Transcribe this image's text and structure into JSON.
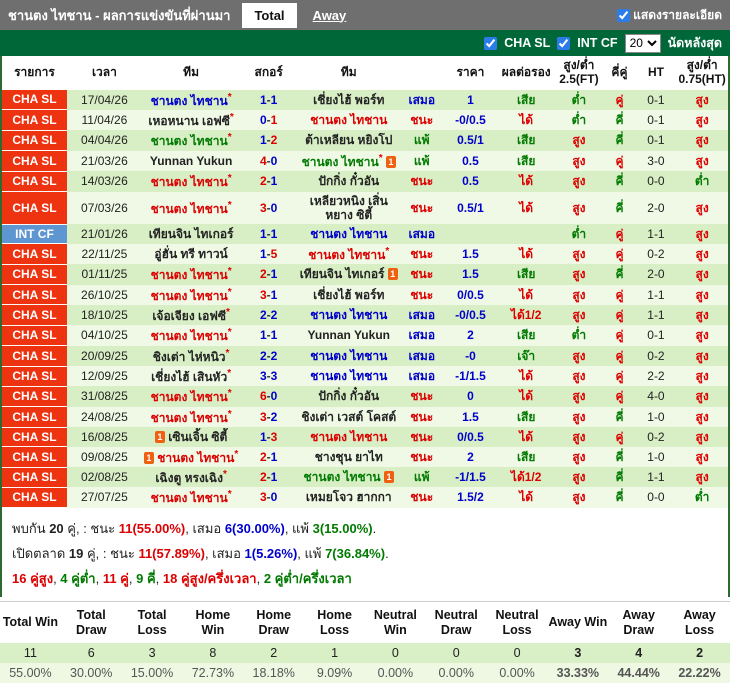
{
  "colors": {
    "red": "#dd0000",
    "blue": "#0000cc",
    "green": "#007a00",
    "black": "#222222"
  },
  "header": {
    "title": "ชานตง ไทชาน - ผลการแข่งขันที่ผ่านมา",
    "tab_total": "Total",
    "tab_away": "Away",
    "show_details": "แสดงรายละเอียด"
  },
  "filter": {
    "cha": "CHA SL",
    "int": "INT CF",
    "count": "20",
    "count_label": "นัดหลังสุด"
  },
  "table": {
    "headers": [
      "รายการ",
      "เวลา",
      "ทีม",
      "สกอร์",
      "ทีม",
      "",
      "ราคา",
      "ผลต่อรอง",
      "สูง/ต่ำ 2.5(FT)",
      "คี่คู่",
      "HT",
      "สูง/ต่ำ 0.75(HT)"
    ],
    "rows": [
      {
        "lg": "cha",
        "league": "CHA SL",
        "date": "17/04/26",
        "t1": "ชานตง ไทชาน",
        "s1": true,
        "i1": null,
        "c1": "blue",
        "g1": "1",
        "gc1": "blue",
        "g2": "1",
        "gc2": "blue",
        "t2": "เชี่ยงไฮ้ พอร์ท",
        "s2": false,
        "i2": null,
        "c2": "black",
        "res": "เสมอ",
        "resc": "blue",
        "price": "1",
        "hc": "เสีย",
        "hcc": "green",
        "ou": "ต่ำ",
        "ouc": "green",
        "oe": "คู่",
        "oec": "red",
        "ht": "0-1",
        "ouht": "สูง",
        "ouhtc": "red"
      },
      {
        "lg": "cha",
        "league": "CHA SL",
        "date": "11/04/26",
        "t1": "เหอหนาน เอฟซี",
        "s1": true,
        "i1": null,
        "c1": "black",
        "g1": "0",
        "gc1": "blue",
        "g2": "1",
        "gc2": "red",
        "t2": "ชานตง ไทชาน",
        "s2": false,
        "i2": null,
        "c2": "red",
        "res": "ชนะ",
        "resc": "red",
        "price": "-0/0.5",
        "hc": "ได้",
        "hcc": "red",
        "ou": "ต่ำ",
        "ouc": "green",
        "oe": "คี่",
        "oec": "green",
        "ht": "0-1",
        "ouht": "สูง",
        "ouhtc": "red"
      },
      {
        "lg": "cha",
        "league": "CHA SL",
        "date": "04/04/26",
        "t1": "ชานตง ไทชาน",
        "s1": true,
        "i1": null,
        "c1": "green",
        "g1": "1",
        "gc1": "blue",
        "g2": "2",
        "gc2": "red",
        "t2": "ต้าเหลียน หยิงโป",
        "s2": false,
        "i2": null,
        "c2": "black",
        "res": "แพ้",
        "resc": "green",
        "price": "0.5/1",
        "hc": "เสีย",
        "hcc": "green",
        "ou": "สูง",
        "ouc": "red",
        "oe": "คี่",
        "oec": "green",
        "ht": "0-1",
        "ouht": "สูง",
        "ouhtc": "red"
      },
      {
        "lg": "cha",
        "league": "CHA SL",
        "date": "21/03/26",
        "t1": "Yunnan Yukun",
        "s1": false,
        "i1": null,
        "c1": "black",
        "g1": "4",
        "gc1": "red",
        "g2": "0",
        "gc2": "blue",
        "t2": "ชานตง ไทชาน",
        "s2": true,
        "i2": "after",
        "c2": "green",
        "res": "แพ้",
        "resc": "green",
        "price": "0.5",
        "hc": "เสีย",
        "hcc": "green",
        "ou": "สูง",
        "ouc": "red",
        "oe": "คู่",
        "oec": "red",
        "ht": "3-0",
        "ouht": "สูง",
        "ouhtc": "red"
      },
      {
        "lg": "cha",
        "league": "CHA SL",
        "date": "14/03/26",
        "t1": "ชานตง ไทชาน",
        "s1": true,
        "i1": null,
        "c1": "red",
        "g1": "2",
        "gc1": "red",
        "g2": "1",
        "gc2": "blue",
        "t2": "ปักกิ่ง กั๋วอัน",
        "s2": false,
        "i2": null,
        "c2": "black",
        "res": "ชนะ",
        "resc": "red",
        "price": "0.5",
        "hc": "ได้",
        "hcc": "red",
        "ou": "สูง",
        "ouc": "red",
        "oe": "คี่",
        "oec": "green",
        "ht": "0-0",
        "ouht": "ต่ำ",
        "ouhtc": "green"
      },
      {
        "lg": "cha",
        "league": "CHA SL",
        "date": "07/03/26",
        "t1": "ชานตง ไทชาน",
        "s1": true,
        "i1": null,
        "c1": "red",
        "g1": "3",
        "gc1": "red",
        "g2": "0",
        "gc2": "blue",
        "t2": "เหลียวหนิง เสิ่นหยาง ซิตี้",
        "s2": false,
        "i2": null,
        "c2": "black",
        "res": "ชนะ",
        "resc": "red",
        "price": "0.5/1",
        "hc": "ได้",
        "hcc": "red",
        "ou": "สูง",
        "ouc": "red",
        "oe": "คี่",
        "oec": "green",
        "ht": "2-0",
        "ouht": "สูง",
        "ouhtc": "red"
      },
      {
        "lg": "int",
        "league": "INT CF",
        "date": "21/01/26",
        "t1": "เทียนจิน ไทเกอร์",
        "s1": false,
        "i1": null,
        "c1": "black",
        "g1": "1",
        "gc1": "blue",
        "g2": "1",
        "gc2": "blue",
        "t2": "ชานตง ไทชาน",
        "s2": false,
        "i2": null,
        "c2": "blue",
        "res": "เสมอ",
        "resc": "blue",
        "price": "",
        "hc": "",
        "hcc": "black",
        "ou": "ต่ำ",
        "ouc": "green",
        "oe": "คู่",
        "oec": "red",
        "ht": "1-1",
        "ouht": "สูง",
        "ouhtc": "red"
      },
      {
        "lg": "cha",
        "league": "CHA SL",
        "date": "22/11/25",
        "t1": "อู่ฮั่น ทรี ทาวน์",
        "s1": false,
        "i1": null,
        "c1": "black",
        "g1": "1",
        "gc1": "blue",
        "g2": "5",
        "gc2": "red",
        "t2": "ชานตง ไทชาน",
        "s2": true,
        "i2": null,
        "c2": "red",
        "res": "ชนะ",
        "resc": "red",
        "price": "1.5",
        "hc": "ได้",
        "hcc": "red",
        "ou": "สูง",
        "ouc": "red",
        "oe": "คู่",
        "oec": "red",
        "ht": "0-2",
        "ouht": "สูง",
        "ouhtc": "red"
      },
      {
        "lg": "cha",
        "league": "CHA SL",
        "date": "01/11/25",
        "t1": "ชานตง ไทชาน",
        "s1": true,
        "i1": null,
        "c1": "red",
        "g1": "2",
        "gc1": "red",
        "g2": "1",
        "gc2": "blue",
        "t2": "เทียนจิน ไทเกอร์",
        "s2": false,
        "i2": "after",
        "c2": "black",
        "res": "ชนะ",
        "resc": "red",
        "price": "1.5",
        "hc": "เสีย",
        "hcc": "green",
        "ou": "สูง",
        "ouc": "red",
        "oe": "คี่",
        "oec": "green",
        "ht": "2-0",
        "ouht": "สูง",
        "ouhtc": "red"
      },
      {
        "lg": "cha",
        "league": "CHA SL",
        "date": "26/10/25",
        "t1": "ชานตง ไทชาน",
        "s1": true,
        "i1": null,
        "c1": "red",
        "g1": "3",
        "gc1": "red",
        "g2": "1",
        "gc2": "blue",
        "t2": "เชี่ยงไฮ้ พอร์ท",
        "s2": false,
        "i2": null,
        "c2": "black",
        "res": "ชนะ",
        "resc": "red",
        "price": "0/0.5",
        "hc": "ได้",
        "hcc": "red",
        "ou": "สูง",
        "ouc": "red",
        "oe": "คู่",
        "oec": "red",
        "ht": "1-1",
        "ouht": "สูง",
        "ouhtc": "red"
      },
      {
        "lg": "cha",
        "league": "CHA SL",
        "date": "18/10/25",
        "t1": "เจ้อเจียง เอฟซี",
        "s1": true,
        "i1": null,
        "c1": "black",
        "g1": "2",
        "gc1": "blue",
        "g2": "2",
        "gc2": "blue",
        "t2": "ชานตง ไทชาน",
        "s2": false,
        "i2": null,
        "c2": "blue",
        "res": "เสมอ",
        "resc": "blue",
        "price": "-0/0.5",
        "hc": "ได้1/2",
        "hcc": "red",
        "ou": "สูง",
        "ouc": "red",
        "oe": "คู่",
        "oec": "red",
        "ht": "1-1",
        "ouht": "สูง",
        "ouhtc": "red"
      },
      {
        "lg": "cha",
        "league": "CHA SL",
        "date": "04/10/25",
        "t1": "ชานตง ไทชาน",
        "s1": true,
        "i1": null,
        "c1": "red",
        "g1": "1",
        "gc1": "blue",
        "g2": "1",
        "gc2": "blue",
        "t2": "Yunnan Yukun",
        "s2": false,
        "i2": null,
        "c2": "black",
        "res": "เสมอ",
        "resc": "blue",
        "price": "2",
        "hc": "เสีย",
        "hcc": "green",
        "ou": "ต่ำ",
        "ouc": "green",
        "oe": "คู่",
        "oec": "red",
        "ht": "0-1",
        "ouht": "สูง",
        "ouhtc": "red"
      },
      {
        "lg": "cha",
        "league": "CHA SL",
        "date": "20/09/25",
        "t1": "ชิงเต่า ไห่หนิว",
        "s1": true,
        "i1": null,
        "c1": "black",
        "g1": "2",
        "gc1": "blue",
        "g2": "2",
        "gc2": "blue",
        "t2": "ชานตง ไทชาน",
        "s2": false,
        "i2": null,
        "c2": "blue",
        "res": "เสมอ",
        "resc": "blue",
        "price": "-0",
        "hc": "เจ๊า",
        "hcc": "green",
        "ou": "สูง",
        "ouc": "red",
        "oe": "คู่",
        "oec": "red",
        "ht": "0-2",
        "ouht": "สูง",
        "ouhtc": "red"
      },
      {
        "lg": "cha",
        "league": "CHA SL",
        "date": "12/09/25",
        "t1": "เชี่ยงไฮ้ เสินหัว",
        "s1": true,
        "i1": null,
        "c1": "black",
        "g1": "3",
        "gc1": "blue",
        "g2": "3",
        "gc2": "blue",
        "t2": "ชานตง ไทชาน",
        "s2": false,
        "i2": null,
        "c2": "blue",
        "res": "เสมอ",
        "resc": "blue",
        "price": "-1/1.5",
        "hc": "ได้",
        "hcc": "red",
        "ou": "สูง",
        "ouc": "red",
        "oe": "คู่",
        "oec": "red",
        "ht": "2-2",
        "ouht": "สูง",
        "ouhtc": "red"
      },
      {
        "lg": "cha",
        "league": "CHA SL",
        "date": "31/08/25",
        "t1": "ชานตง ไทชาน",
        "s1": true,
        "i1": null,
        "c1": "red",
        "g1": "6",
        "gc1": "red",
        "g2": "0",
        "gc2": "blue",
        "t2": "ปักกิ่ง กั๋วอัน",
        "s2": false,
        "i2": null,
        "c2": "black",
        "res": "ชนะ",
        "resc": "red",
        "price": "0",
        "hc": "ได้",
        "hcc": "red",
        "ou": "สูง",
        "ouc": "red",
        "oe": "คู่",
        "oec": "red",
        "ht": "4-0",
        "ouht": "สูง",
        "ouhtc": "red"
      },
      {
        "lg": "cha",
        "league": "CHA SL",
        "date": "24/08/25",
        "t1": "ชานตง ไทชาน",
        "s1": true,
        "i1": null,
        "c1": "red",
        "g1": "3",
        "gc1": "red",
        "g2": "2",
        "gc2": "blue",
        "t2": "ชิงเต่า เวสต์ โคสต์",
        "s2": false,
        "i2": null,
        "c2": "black",
        "res": "ชนะ",
        "resc": "red",
        "price": "1.5",
        "hc": "เสีย",
        "hcc": "green",
        "ou": "สูง",
        "ouc": "red",
        "oe": "คี่",
        "oec": "green",
        "ht": "1-0",
        "ouht": "สูง",
        "ouhtc": "red"
      },
      {
        "lg": "cha",
        "league": "CHA SL",
        "date": "16/08/25",
        "t1": "เซินเจิ้น ซิตี้",
        "s1": false,
        "i1": "before",
        "c1": "black",
        "g1": "1",
        "gc1": "blue",
        "g2": "3",
        "gc2": "red",
        "t2": "ชานตง ไทชาน",
        "s2": false,
        "i2": null,
        "c2": "red",
        "res": "ชนะ",
        "resc": "red",
        "price": "0/0.5",
        "hc": "ได้",
        "hcc": "red",
        "ou": "สูง",
        "ouc": "red",
        "oe": "คู่",
        "oec": "red",
        "ht": "0-2",
        "ouht": "สูง",
        "ouhtc": "red"
      },
      {
        "lg": "cha",
        "league": "CHA SL",
        "date": "09/08/25",
        "t1": "ชานตง ไทชาน",
        "s1": true,
        "i1": "before",
        "c1": "red",
        "g1": "2",
        "gc1": "red",
        "g2": "1",
        "gc2": "blue",
        "t2": "ชางชุน ยาไท",
        "s2": false,
        "i2": null,
        "c2": "black",
        "res": "ชนะ",
        "resc": "red",
        "price": "2",
        "hc": "เสีย",
        "hcc": "green",
        "ou": "สูง",
        "ouc": "red",
        "oe": "คี่",
        "oec": "green",
        "ht": "1-0",
        "ouht": "สูง",
        "ouhtc": "red"
      },
      {
        "lg": "cha",
        "league": "CHA SL",
        "date": "02/08/25",
        "t1": "เฉิงตู หรงเฉิง",
        "s1": true,
        "i1": null,
        "c1": "black",
        "g1": "2",
        "gc1": "red",
        "g2": "1",
        "gc2": "blue",
        "t2": "ชานตง ไทชาน",
        "s2": false,
        "i2": "after",
        "c2": "green",
        "res": "แพ้",
        "resc": "green",
        "price": "-1/1.5",
        "hc": "ได้1/2",
        "hcc": "red",
        "ou": "สูง",
        "ouc": "red",
        "oe": "คี่",
        "oec": "green",
        "ht": "1-1",
        "ouht": "สูง",
        "ouhtc": "red"
      },
      {
        "lg": "cha",
        "league": "CHA SL",
        "date": "27/07/25",
        "t1": "ชานตง ไทชาน",
        "s1": true,
        "i1": null,
        "c1": "red",
        "g1": "3",
        "gc1": "red",
        "g2": "0",
        "gc2": "blue",
        "t2": "เหมยโจว ฮากกา",
        "s2": false,
        "i2": null,
        "c2": "black",
        "res": "ชนะ",
        "resc": "red",
        "price": "1.5/2",
        "hc": "ได้",
        "hcc": "red",
        "ou": "สูง",
        "ouc": "red",
        "oe": "คี่",
        "oec": "green",
        "ht": "0-0",
        "ouht": "ต่ำ",
        "ouhtc": "green"
      }
    ]
  },
  "summary": {
    "lines": [
      [
        {
          "t": "พบกัน "
        },
        {
          "t": "20",
          "b": true
        },
        {
          "t": " คู่, : ชนะ "
        },
        {
          "t": "11(55.00%)",
          "c": "red",
          "b": true
        },
        {
          "t": ", เสมอ "
        },
        {
          "t": "6(30.00%)",
          "c": "blue",
          "b": true
        },
        {
          "t": ", แพ้ "
        },
        {
          "t": "3(15.00%)",
          "c": "green",
          "b": true
        },
        {
          "t": "."
        }
      ],
      [
        {
          "t": "เปิดตลาด "
        },
        {
          "t": "19",
          "b": true
        },
        {
          "t": " คู่, : ชนะ "
        },
        {
          "t": "11(57.89%)",
          "c": "red",
          "b": true
        },
        {
          "t": ", เสมอ "
        },
        {
          "t": "1(5.26%)",
          "c": "blue",
          "b": true
        },
        {
          "t": ", แพ้ "
        },
        {
          "t": "7(36.84%)",
          "c": "green",
          "b": true
        },
        {
          "t": "."
        }
      ],
      [
        {
          "t": "16 คู่สูง",
          "c": "red",
          "b": true
        },
        {
          "t": ", "
        },
        {
          "t": "4 คู่ต่ำ",
          "c": "green",
          "b": true
        },
        {
          "t": ", "
        },
        {
          "t": "11 คู่",
          "c": "red",
          "b": true
        },
        {
          "t": ", "
        },
        {
          "t": "9 คี่",
          "c": "green",
          "b": true
        },
        {
          "t": ", "
        },
        {
          "t": "18 คู่สูง/ครึ่งเวลา",
          "c": "red",
          "b": true
        },
        {
          "t": ", "
        },
        {
          "t": "2 คู่ต่ำ/ครึ่งเวลา",
          "c": "green",
          "b": true
        }
      ]
    ]
  },
  "stats": {
    "headers": [
      "Total Win",
      "Total Draw",
      "Total Loss",
      "Home Win",
      "Home Draw",
      "Home Loss",
      "Neutral Win",
      "Neutral Draw",
      "Neutral Loss",
      "Away Win",
      "Away Draw",
      "Away Loss"
    ],
    "counts": [
      "11",
      "6",
      "3",
      "8",
      "2",
      "1",
      "0",
      "0",
      "0",
      "3",
      "4",
      "2"
    ],
    "percents": [
      "55.00%",
      "30.00%",
      "15.00%",
      "72.73%",
      "18.18%",
      "9.09%",
      "0.00%",
      "0.00%",
      "0.00%",
      "33.33%",
      "44.44%",
      "22.22%"
    ],
    "away_start": 9
  }
}
